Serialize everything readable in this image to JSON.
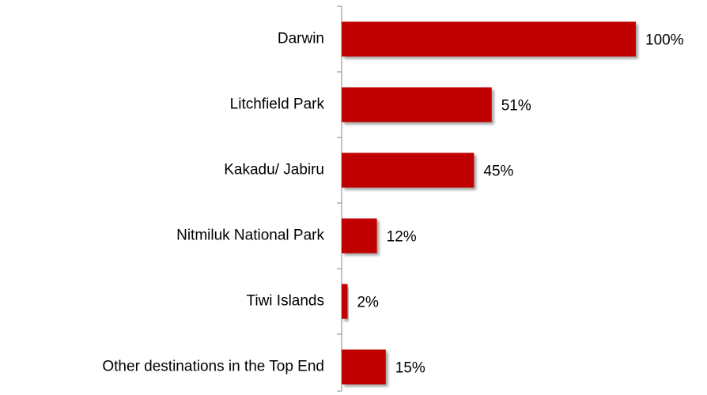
{
  "chart_data": {
    "type": "hbar",
    "categories": [
      "Darwin",
      "Litchfield Park",
      "Kakadu/ Jabiru",
      "Nitmiluk National Park",
      "Tiwi Islands",
      "Other destinations in the Top End"
    ],
    "values": [
      100,
      51,
      45,
      12,
      2,
      15
    ],
    "value_labels": [
      "100%",
      "51%",
      "45%",
      "12%",
      "2%",
      "15%"
    ],
    "color": "#c00000"
  }
}
